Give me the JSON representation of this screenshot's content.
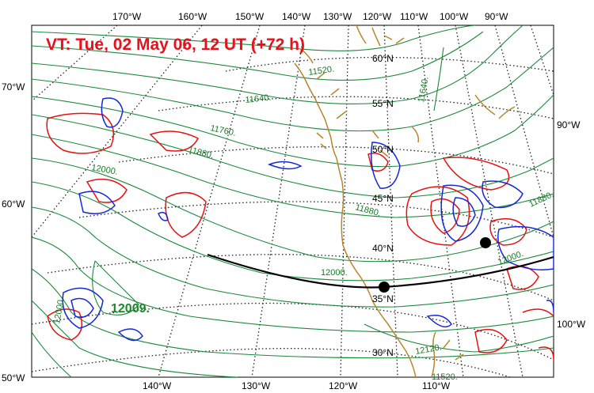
{
  "title": "VT:  Tue, 02 May 06, 12 UT (+72 h)",
  "colors": {
    "title": "#e8101a",
    "contour": "#1a8a3a",
    "positive": "#e81010",
    "negative": "#1428d8",
    "coast": "#b8862a",
    "track": "#000000"
  },
  "top_longitudes": [
    "170°W",
    "160°W",
    "150°W",
    "140°W",
    "130°W",
    "120°W",
    "110°W",
    "100°W",
    "90°W"
  ],
  "bottom_longitudes": [
    "140°W",
    "130°W",
    "120°W",
    "110°W"
  ],
  "left_labels": [
    "70°W",
    "60°W",
    "50°W"
  ],
  "right_labels": [
    "90°W",
    "100°W"
  ],
  "latitudes": [
    "60°N",
    "55°N",
    "50°N",
    "45°N",
    "40°N",
    "35°N",
    "30°N"
  ],
  "contour_labels": [
    "11520.",
    "11640.",
    "11640.",
    "11760.",
    "11880.",
    "12000.",
    "12000.",
    "11880.",
    "11880.",
    "12000.",
    "12120.",
    "12000.",
    "11520."
  ],
  "max_label": "12009."
}
